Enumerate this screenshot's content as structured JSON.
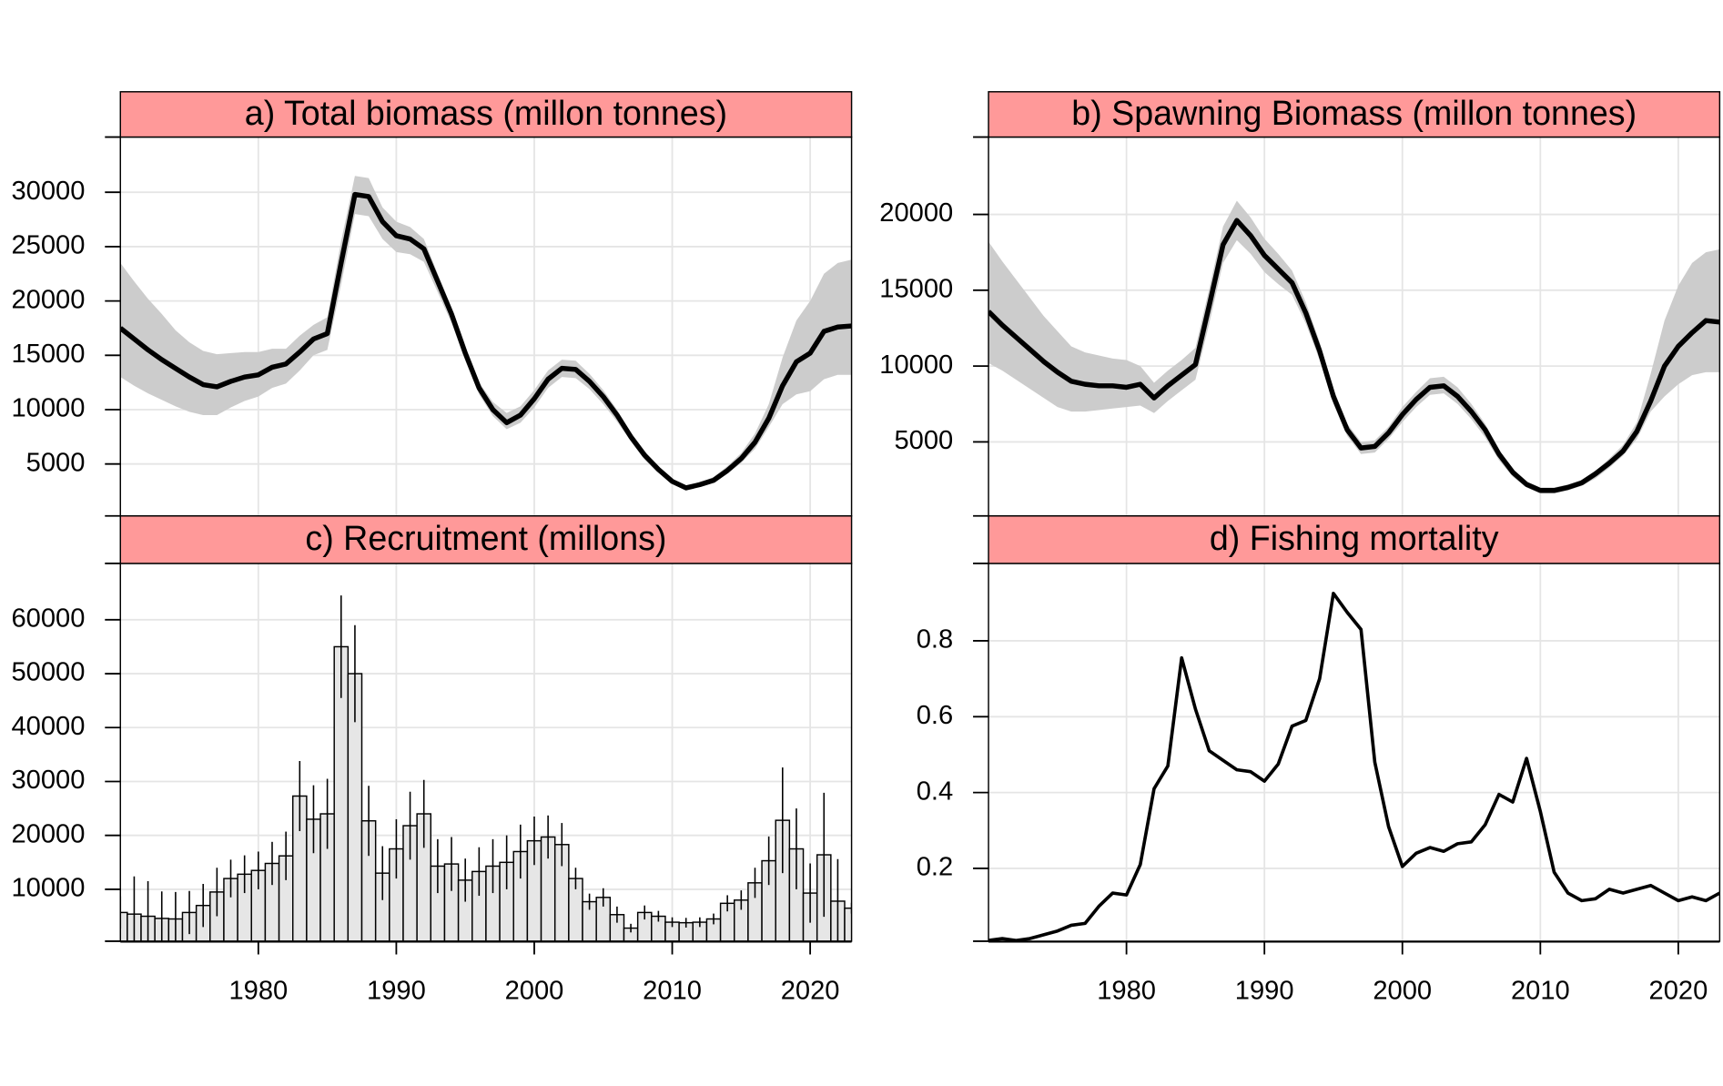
{
  "chart_data": [
    {
      "type": "line",
      "title": "a) Total biomass (millon tonnes)",
      "x": [
        1970,
        1971,
        1972,
        1973,
        1974,
        1975,
        1976,
        1977,
        1978,
        1979,
        1980,
        1981,
        1982,
        1983,
        1984,
        1985,
        1986,
        1987,
        1988,
        1989,
        1990,
        1991,
        1992,
        1993,
        1994,
        1995,
        1996,
        1997,
        1998,
        1999,
        2000,
        2001,
        2002,
        2003,
        2004,
        2005,
        2006,
        2007,
        2008,
        2009,
        2010,
        2011,
        2012,
        2013,
        2014,
        2015,
        2016,
        2017,
        2018,
        2019,
        2020,
        2021,
        2022,
        2023
      ],
      "values": [
        17500,
        16500,
        15500,
        14600,
        13800,
        13000,
        12300,
        12100,
        12600,
        13000,
        13200,
        13900,
        14200,
        15300,
        16500,
        17000,
        23500,
        29800,
        29600,
        27300,
        26000,
        25700,
        24800,
        21800,
        18800,
        15200,
        12000,
        10000,
        8800,
        9500,
        11000,
        12800,
        13800,
        13700,
        12600,
        11200,
        9500,
        7500,
        5800,
        4500,
        3400,
        2800,
        3100,
        3500,
        4400,
        5500,
        7000,
        9200,
        12200,
        14400,
        15200,
        17200,
        17600,
        17700
      ],
      "upper": [
        23500,
        21800,
        20200,
        18800,
        17300,
        16200,
        15400,
        15100,
        15200,
        15300,
        15300,
        15600,
        15600,
        16800,
        17800,
        18500,
        25500,
        31500,
        31300,
        28600,
        27300,
        26800,
        25700,
        22500,
        19400,
        15800,
        12500,
        10700,
        9700,
        10300,
        11800,
        13600,
        14600,
        14500,
        13300,
        11800,
        10000,
        7900,
        6200,
        4800,
        3600,
        3000,
        3300,
        3800,
        4800,
        6000,
        7800,
        10500,
        14800,
        18200,
        20000,
        22500,
        23500,
        23800
      ],
      "lower": [
        13000,
        12200,
        11500,
        10900,
        10300,
        9800,
        9500,
        9500,
        10200,
        10800,
        11200,
        12000,
        12400,
        13600,
        15000,
        15500,
        21500,
        28000,
        27800,
        25700,
        24500,
        24300,
        23600,
        20800,
        18000,
        14500,
        11400,
        9400,
        8200,
        8800,
        10200,
        12000,
        13000,
        12900,
        11900,
        10500,
        8900,
        7100,
        5400,
        4200,
        3200,
        2600,
        2900,
        3300,
        4100,
        5100,
        6400,
        8400,
        10500,
        11400,
        11700,
        12800,
        13200,
        13200
      ],
      "color": "#000000",
      "band_color": "#cccccc",
      "strip_color": "#ff9999",
      "xlim": [
        1970,
        2023
      ],
      "ylim": [
        220,
        35080
      ],
      "xticks": [
        1980,
        1990,
        2000,
        2010,
        2020
      ],
      "yticks": [
        5000,
        10000,
        15000,
        20000,
        25000,
        30000
      ],
      "show_xtick_labels": false,
      "grid": true
    },
    {
      "type": "line",
      "title": "b) Spawning Biomass (millon tonnes)",
      "x": [
        1970,
        1971,
        1972,
        1973,
        1974,
        1975,
        1976,
        1977,
        1978,
        1979,
        1980,
        1981,
        1982,
        1983,
        1984,
        1985,
        1986,
        1987,
        1988,
        1989,
        1990,
        1991,
        1992,
        1993,
        1994,
        1995,
        1996,
        1997,
        1998,
        1999,
        2000,
        2001,
        2002,
        2003,
        2004,
        2005,
        2006,
        2007,
        2008,
        2009,
        2010,
        2011,
        2012,
        2013,
        2014,
        2015,
        2016,
        2017,
        2018,
        2019,
        2020,
        2021,
        2022,
        2023
      ],
      "values": [
        13600,
        12700,
        11900,
        11100,
        10300,
        9600,
        9000,
        8800,
        8700,
        8700,
        8600,
        8800,
        7900,
        8700,
        9400,
        10100,
        14000,
        18000,
        19600,
        18600,
        17300,
        16400,
        15500,
        13500,
        11000,
        8000,
        5800,
        4600,
        4700,
        5600,
        6800,
        7800,
        8600,
        8700,
        8000,
        7000,
        5800,
        4200,
        3000,
        2200,
        1800,
        1800,
        2000,
        2300,
        2900,
        3600,
        4400,
        5700,
        7700,
        10000,
        11300,
        12200,
        13000,
        12900
      ],
      "upper": [
        18200,
        16900,
        15700,
        14500,
        13300,
        12300,
        11300,
        10900,
        10700,
        10500,
        10400,
        10000,
        8900,
        9700,
        10400,
        11200,
        15100,
        19200,
        20900,
        19800,
        18400,
        17400,
        16300,
        14200,
        11600,
        8500,
        6200,
        5000,
        5100,
        6000,
        7300,
        8300,
        9200,
        9300,
        8600,
        7500,
        6200,
        4500,
        3200,
        2400,
        2000,
        2000,
        2200,
        2500,
        3100,
        3900,
        4800,
        6300,
        9500,
        13000,
        15300,
        16800,
        17500,
        17700
      ],
      "lower": [
        10200,
        9700,
        9100,
        8500,
        7900,
        7300,
        7000,
        7000,
        7100,
        7200,
        7300,
        7400,
        6900,
        7700,
        8400,
        9100,
        12800,
        16800,
        18300,
        17400,
        16200,
        15400,
        14700,
        12800,
        10400,
        7500,
        5400,
        4200,
        4300,
        5200,
        6300,
        7300,
        8100,
        8200,
        7500,
        6500,
        5300,
        3800,
        2700,
        2000,
        1600,
        1600,
        1800,
        2100,
        2600,
        3300,
        4100,
        5200,
        7000,
        8000,
        8800,
        9400,
        9600,
        9600
      ],
      "color": "#000000",
      "band_color": "#cccccc",
      "strip_color": "#ff9999",
      "xlim": [
        1970,
        2023
      ],
      "ylim": [
        120,
        25100
      ],
      "xticks": [
        1980,
        1990,
        2000,
        2010,
        2020
      ],
      "yticks": [
        5000,
        10000,
        15000,
        20000
      ],
      "show_xtick_labels": false,
      "grid": true
    },
    {
      "type": "bar",
      "title": "c) Recruitment (millons)",
      "x": [
        1970,
        1971,
        1972,
        1973,
        1974,
        1975,
        1976,
        1977,
        1978,
        1979,
        1980,
        1981,
        1982,
        1983,
        1984,
        1985,
        1986,
        1987,
        1988,
        1989,
        1990,
        1991,
        1992,
        1993,
        1994,
        1995,
        1996,
        1997,
        1998,
        1999,
        2000,
        2001,
        2002,
        2003,
        2004,
        2005,
        2006,
        2007,
        2008,
        2009,
        2010,
        2011,
        2012,
        2013,
        2014,
        2015,
        2016,
        2017,
        2018,
        2019,
        2020,
        2021,
        2022,
        2023
      ],
      "values": [
        5700,
        5400,
        5000,
        4600,
        4500,
        5700,
        7000,
        9500,
        12000,
        12800,
        13500,
        14800,
        16200,
        27300,
        23000,
        24000,
        55000,
        50000,
        22700,
        13000,
        17500,
        21800,
        24000,
        14300,
        14700,
        11700,
        13300,
        14300,
        15000,
        17000,
        19000,
        19700,
        18300,
        12000,
        7700,
        8500,
        5300,
        2800,
        5700,
        5000,
        3900,
        3800,
        3900,
        4500,
        7400,
        8000,
        11200,
        15300,
        22800,
        17500,
        9300,
        16400,
        7800,
        6500
      ],
      "errors": [
        3000,
        7000,
        6500,
        5000,
        5000,
        4000,
        4000,
        4500,
        3500,
        3500,
        3500,
        4000,
        4500,
        6500,
        6300,
        6500,
        9500,
        9000,
        6500,
        5000,
        5500,
        6300,
        6300,
        5000,
        5000,
        4000,
        4500,
        5000,
        5000,
        5000,
        4500,
        4000,
        4000,
        2000,
        1500,
        1700,
        1500,
        800,
        1300,
        1000,
        900,
        900,
        900,
        1000,
        1500,
        1800,
        2800,
        4500,
        9800,
        7500,
        5500,
        11500,
        7800,
        1000
      ],
      "color": "#e6e6e6",
      "strip_color": "#ff9999",
      "xlim": [
        1970,
        2023
      ],
      "ylim": [
        370,
        70450
      ],
      "xticks": [
        1980,
        1990,
        2000,
        2010,
        2020
      ],
      "yticks": [
        10000,
        20000,
        30000,
        40000,
        50000,
        60000
      ],
      "show_xtick_labels": true,
      "grid": true
    },
    {
      "type": "line",
      "title": "d) Fishing mortality",
      "x": [
        1970,
        1971,
        1972,
        1973,
        1974,
        1975,
        1976,
        1977,
        1978,
        1979,
        1980,
        1981,
        1982,
        1983,
        1984,
        1985,
        1986,
        1987,
        1988,
        1989,
        1990,
        1991,
        1992,
        1993,
        1994,
        1995,
        1996,
        1997,
        1998,
        1999,
        2000,
        2001,
        2002,
        2003,
        2004,
        2005,
        2006,
        2007,
        2008,
        2009,
        2010,
        2011,
        2012,
        2013,
        2014,
        2015,
        2016,
        2017,
        2018,
        2019,
        2020,
        2021,
        2022,
        2023
      ],
      "values": [
        0.01,
        0.015,
        0.01,
        0.015,
        0.025,
        0.035,
        0.05,
        0.055,
        0.1,
        0.135,
        0.13,
        0.21,
        0.41,
        0.47,
        0.755,
        0.62,
        0.51,
        0.485,
        0.46,
        0.455,
        0.43,
        0.475,
        0.575,
        0.59,
        0.7,
        0.925,
        0.875,
        0.83,
        0.48,
        0.31,
        0.205,
        0.24,
        0.255,
        0.245,
        0.265,
        0.27,
        0.315,
        0.395,
        0.375,
        0.49,
        0.35,
        0.19,
        0.135,
        0.115,
        0.12,
        0.145,
        0.135,
        0.145,
        0.155,
        0.135,
        0.115,
        0.125,
        0.115,
        0.135
      ],
      "color": "#000000",
      "strip_color": "#ff9999",
      "xlim": [
        1970,
        2023
      ],
      "ylim": [
        0.008,
        1.004
      ],
      "xticks": [
        1980,
        1990,
        2000,
        2010,
        2020
      ],
      "yticks": [
        0.2,
        0.4,
        0.6,
        0.8
      ],
      "show_xtick_labels": true,
      "grid": true
    }
  ]
}
